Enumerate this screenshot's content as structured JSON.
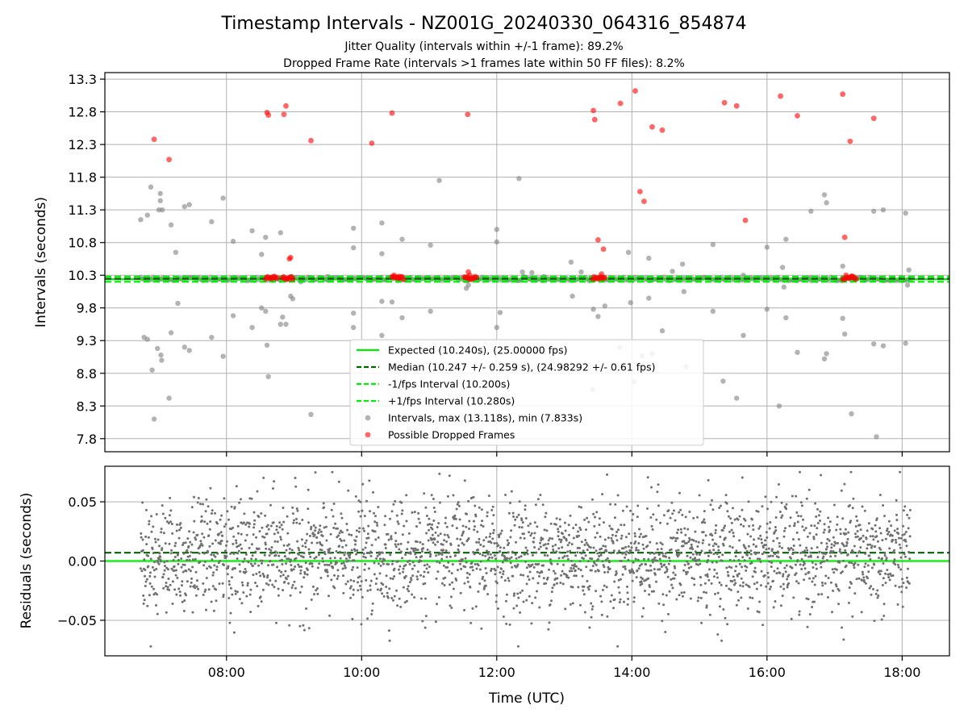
{
  "chart_data": {
    "type": "scatter",
    "title": "Timestamp Intervals - NZ001G_20240330_064316_854874",
    "subtitle_lines": [
      "Jitter Quality (intervals within +/-1 frame): 89.2%",
      "Dropped Frame Rate (intervals >1 frames late within 50 FF files): 8.2%"
    ],
    "xlabel": "Time (UTC)",
    "x_range_hours": [
      6.2,
      18.7
    ],
    "x_ticks": [
      {
        "hour": 8,
        "label": "08:00"
      },
      {
        "hour": 10,
        "label": "10:00"
      },
      {
        "hour": 12,
        "label": "12:00"
      },
      {
        "hour": 14,
        "label": "14:00"
      },
      {
        "hour": 16,
        "label": "16:00"
      },
      {
        "hour": 18,
        "label": "18:00"
      }
    ],
    "grid": true,
    "top_panel": {
      "ylabel": "Intervals (seconds)",
      "ylim": [
        7.6,
        13.4
      ],
      "y_ticks": [
        {
          "value": 7.8,
          "label": "7.8"
        },
        {
          "value": 8.3,
          "label": "8.3"
        },
        {
          "value": 8.8,
          "label": "8.8"
        },
        {
          "value": 9.3,
          "label": "9.3"
        },
        {
          "value": 9.8,
          "label": "9.8"
        },
        {
          "value": 10.3,
          "label": "10.3"
        },
        {
          "value": 10.8,
          "label": "10.8"
        },
        {
          "value": 11.3,
          "label": "11.3"
        },
        {
          "value": 11.8,
          "label": "11.8"
        },
        {
          "value": 12.3,
          "label": "12.3"
        },
        {
          "value": 12.8,
          "label": "12.8"
        },
        {
          "value": 13.3,
          "label": "13.3"
        }
      ],
      "lines": [
        {
          "name": "Expected (10.240s), (25.00000 fps)",
          "value": 10.24,
          "color": "#00ee00",
          "style": "solid"
        },
        {
          "name": "Median (10.247 +/- 0.259 s), (24.98292 +/- 0.61 fps)",
          "value": 10.247,
          "color": "#006400",
          "style": "dashed"
        },
        {
          "name": "-1/fps Interval (10.200s)",
          "value": 10.2,
          "color": "#00ee00",
          "style": "dashed"
        },
        {
          "name": "+1/fps Interval (10.280s)",
          "value": 10.28,
          "color": "#00ee00",
          "style": "dashed"
        }
      ],
      "interval_series": {
        "name": "Intervals, max (13.118s), min (7.833s)",
        "color": "#808080",
        "points": [
          [
            6.73,
            11.15
          ],
          [
            6.78,
            9.35
          ],
          [
            6.83,
            11.22
          ],
          [
            6.83,
            9.32
          ],
          [
            6.88,
            11.65
          ],
          [
            6.9,
            8.85
          ],
          [
            6.93,
            8.1
          ],
          [
            6.98,
            9.18
          ],
          [
            7.0,
            11.3
          ],
          [
            7.02,
            11.44
          ],
          [
            7.02,
            11.55
          ],
          [
            7.03,
            9.08
          ],
          [
            7.04,
            9.0
          ],
          [
            7.05,
            11.3
          ],
          [
            7.15,
            8.42
          ],
          [
            7.18,
            11.07
          ],
          [
            7.18,
            9.42
          ],
          [
            7.25,
            10.65
          ],
          [
            7.28,
            9.87
          ],
          [
            7.38,
            11.35
          ],
          [
            7.38,
            9.2
          ],
          [
            7.45,
            11.38
          ],
          [
            7.45,
            9.15
          ],
          [
            7.78,
            11.12
          ],
          [
            7.78,
            9.35
          ],
          [
            7.95,
            11.48
          ],
          [
            7.95,
            9.06
          ],
          [
            8.1,
            10.82
          ],
          [
            8.1,
            9.68
          ],
          [
            8.38,
            10.98
          ],
          [
            8.38,
            9.5
          ],
          [
            8.52,
            10.62
          ],
          [
            8.52,
            9.8
          ],
          [
            8.58,
            10.88
          ],
          [
            8.58,
            9.75
          ],
          [
            8.6,
            9.23
          ],
          [
            8.62,
            8.75
          ],
          [
            8.8,
            10.95
          ],
          [
            8.8,
            9.55
          ],
          [
            8.83,
            9.66
          ],
          [
            8.88,
            9.55
          ],
          [
            8.95,
            9.98
          ],
          [
            8.98,
            9.94
          ],
          [
            9.25,
            8.17
          ],
          [
            9.5,
            10.28
          ],
          [
            9.88,
            11.02
          ],
          [
            9.88,
            10.72
          ],
          [
            9.88,
            9.72
          ],
          [
            9.88,
            9.5
          ],
          [
            10.3,
            10.63
          ],
          [
            10.3,
            9.9
          ],
          [
            10.3,
            9.38
          ],
          [
            10.3,
            11.1
          ],
          [
            10.45,
            9.89
          ],
          [
            10.48,
            10.28
          ],
          [
            10.6,
            10.85
          ],
          [
            10.6,
            9.65
          ],
          [
            11.02,
            10.76
          ],
          [
            11.02,
            9.75
          ],
          [
            11.15,
            11.75
          ],
          [
            11.55,
            10.1
          ],
          [
            11.58,
            10.15
          ],
          [
            12.0,
            11.0
          ],
          [
            12.0,
            10.81
          ],
          [
            12.0,
            9.5
          ],
          [
            12.05,
            9.73
          ],
          [
            12.33,
            11.78
          ],
          [
            12.38,
            10.35
          ],
          [
            12.4,
            10.28
          ],
          [
            12.5,
            10.25
          ],
          [
            12.7,
            10.28
          ],
          [
            13.1,
            10.5
          ],
          [
            13.12,
            9.98
          ],
          [
            13.25,
            10.35
          ],
          [
            13.42,
            8.55
          ],
          [
            13.43,
            9.78
          ],
          [
            13.5,
            9.67
          ],
          [
            13.6,
            9.83
          ],
          [
            13.82,
            9.2
          ],
          [
            13.95,
            10.65
          ],
          [
            13.98,
            9.88
          ],
          [
            14.03,
            8.67
          ],
          [
            14.15,
            9.07
          ],
          [
            14.25,
            10.56
          ],
          [
            14.25,
            9.95
          ],
          [
            14.3,
            9.1
          ],
          [
            14.45,
            9.45
          ],
          [
            14.6,
            10.36
          ],
          [
            14.75,
            10.47
          ],
          [
            14.77,
            10.05
          ],
          [
            14.8,
            8.9
          ],
          [
            15.2,
            10.77
          ],
          [
            15.2,
            9.75
          ],
          [
            15.35,
            8.68
          ],
          [
            15.55,
            8.42
          ],
          [
            15.65,
            9.38
          ],
          [
            15.65,
            10.3
          ],
          [
            16.0,
            10.73
          ],
          [
            16.0,
            9.78
          ],
          [
            16.18,
            8.3
          ],
          [
            16.23,
            10.42
          ],
          [
            16.25,
            10.12
          ],
          [
            16.28,
            10.85
          ],
          [
            16.28,
            9.65
          ],
          [
            16.45,
            9.12
          ],
          [
            16.65,
            11.28
          ],
          [
            16.65,
            10.22
          ],
          [
            16.85,
            11.53
          ],
          [
            16.88,
            11.41
          ],
          [
            16.85,
            9.02
          ],
          [
            16.88,
            9.1
          ],
          [
            17.12,
            10.44
          ],
          [
            17.12,
            9.64
          ],
          [
            17.15,
            9.4
          ],
          [
            17.25,
            8.18
          ],
          [
            17.58,
            11.28
          ],
          [
            17.58,
            9.25
          ],
          [
            17.62,
            7.83
          ],
          [
            17.72,
            11.3
          ],
          [
            17.72,
            9.22
          ],
          [
            18.05,
            11.25
          ],
          [
            18.05,
            9.26
          ],
          [
            18.08,
            10.15
          ],
          [
            18.1,
            10.38
          ],
          [
            12.52,
            10.34
          ],
          [
            9.1,
            10.2
          ]
        ]
      },
      "dropped_series": {
        "name": "Possible Dropped Frames",
        "color": "#ff0000",
        "points": [
          [
            6.93,
            12.38
          ],
          [
            7.15,
            12.07
          ],
          [
            8.6,
            12.79
          ],
          [
            8.62,
            12.75
          ],
          [
            8.85,
            12.76
          ],
          [
            8.88,
            12.89
          ],
          [
            8.93,
            10.55
          ],
          [
            8.95,
            10.57
          ],
          [
            9.25,
            12.36
          ],
          [
            10.15,
            12.32
          ],
          [
            10.45,
            12.78
          ],
          [
            10.48,
            10.3
          ],
          [
            10.55,
            10.28
          ],
          [
            11.57,
            12.76
          ],
          [
            11.58,
            10.35
          ],
          [
            11.6,
            10.3
          ],
          [
            13.43,
            12.82
          ],
          [
            13.45,
            12.68
          ],
          [
            13.5,
            10.84
          ],
          [
            13.58,
            10.7
          ],
          [
            13.55,
            10.32
          ],
          [
            13.83,
            12.93
          ],
          [
            14.05,
            13.12
          ],
          [
            14.12,
            11.58
          ],
          [
            14.18,
            11.43
          ],
          [
            14.3,
            12.57
          ],
          [
            14.45,
            12.52
          ],
          [
            15.37,
            12.94
          ],
          [
            15.55,
            12.89
          ],
          [
            15.68,
            11.14
          ],
          [
            16.2,
            13.04
          ],
          [
            16.45,
            12.74
          ],
          [
            17.12,
            13.07
          ],
          [
            17.15,
            10.88
          ],
          [
            17.23,
            12.35
          ],
          [
            17.58,
            12.7
          ],
          [
            17.17,
            10.3
          ],
          [
            17.25,
            10.28
          ]
        ],
        "clusters": [
          {
            "x_start": 8.58,
            "x_end": 8.75
          },
          {
            "x_start": 8.83,
            "x_end": 8.98
          },
          {
            "x_start": 10.45,
            "x_end": 10.62
          },
          {
            "x_start": 11.52,
            "x_end": 11.7
          },
          {
            "x_start": 13.42,
            "x_end": 13.6
          },
          {
            "x_start": 17.12,
            "x_end": 17.32
          }
        ],
        "cluster_value": 10.26
      },
      "baseline_band": {
        "x_start": 6.73,
        "x_end": 18.12,
        "center": 10.243,
        "spread": 0.05
      }
    },
    "bottom_panel": {
      "ylabel": "Residuals (seconds)",
      "ylim": [
        -0.08,
        0.08
      ],
      "y_ticks": [
        {
          "value": -0.05,
          "label": "−0.05"
        },
        {
          "value": 0.0,
          "label": "0.00"
        },
        {
          "value": 0.05,
          "label": "0.05"
        }
      ],
      "lines": [
        {
          "name": "Expected",
          "value": 0.0,
          "color": "#00ee00",
          "style": "solid"
        },
        {
          "name": "Median",
          "value": 0.007,
          "color": "#006400",
          "style": "dashed"
        }
      ],
      "residual_series": {
        "color": "#707070",
        "x_start": 6.73,
        "x_end": 18.12,
        "count": 2600,
        "center": 0.005,
        "sigma": 0.024,
        "min": -0.072,
        "max": 0.075
      }
    },
    "legend": {
      "placement": "lower-center",
      "entries": [
        {
          "label": "Expected (10.240s), (25.00000 fps)",
          "kind": "line",
          "color": "#00ee00",
          "dash": false
        },
        {
          "label": "Median (10.247 +/- 0.259 s), (24.98292 +/- 0.61 fps)",
          "kind": "line",
          "color": "#006400",
          "dash": true
        },
        {
          "label": "-1/fps Interval (10.200s)",
          "kind": "line",
          "color": "#00ee00",
          "dash": true
        },
        {
          "label": "+1/fps Interval (10.280s)",
          "kind": "line",
          "color": "#00ee00",
          "dash": true
        },
        {
          "label": "Intervals, max (13.118s), min (7.833s)",
          "kind": "marker",
          "color": "#808080"
        },
        {
          "label": "Possible Dropped Frames",
          "kind": "marker",
          "color": "#ff0000"
        }
      ]
    }
  }
}
